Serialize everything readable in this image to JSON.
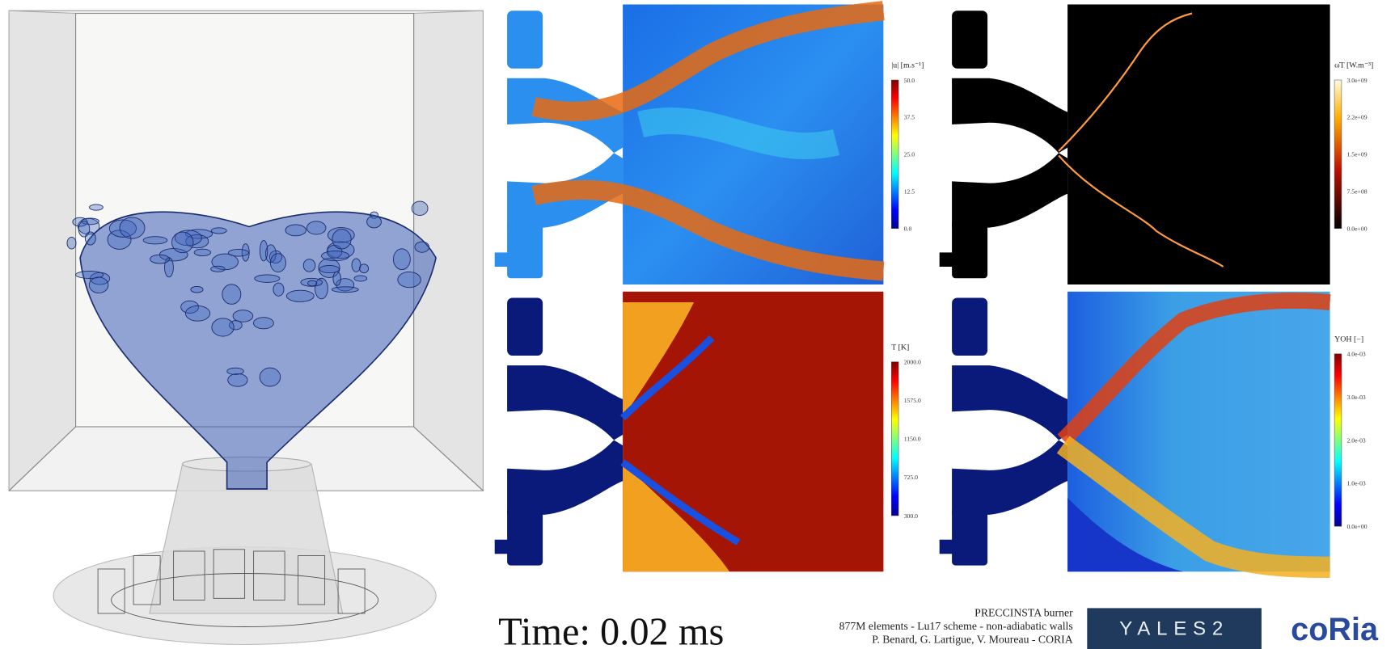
{
  "panels": [
    {
      "colorbar": {
        "label": "|u| [m.s⁻¹]",
        "ticks": [
          "50.0",
          "37.5",
          "25.0",
          "12.5",
          "0.0"
        ]
      }
    },
    {
      "colorbar": {
        "label": "ω̇T [W.m⁻³]",
        "ticks": [
          "3.0e+09",
          "2.2e+09",
          "1.5e+09",
          "7.5e+08",
          "0.0e+00"
        ]
      }
    },
    {
      "colorbar": {
        "label": "T [K]",
        "ticks": [
          "2000.0",
          "1575.0",
          "1150.0",
          "725.0",
          "300.0"
        ]
      }
    },
    {
      "colorbar": {
        "label": "YOH [−]",
        "ticks": [
          "4.0e-03",
          "3.0e-03",
          "2.0e-03",
          "1.0e-03",
          "0.0e+00"
        ]
      }
    }
  ],
  "time": "Time: 0.02 ms",
  "credits": [
    "PRECCINSTA burner",
    "877M elements - Lu17 scheme - non-adiabatic walls",
    "P. Benard, G. Lartigue, V. Moureau - CORIA"
  ],
  "logos": [
    "YALES2",
    "coRia"
  ]
}
